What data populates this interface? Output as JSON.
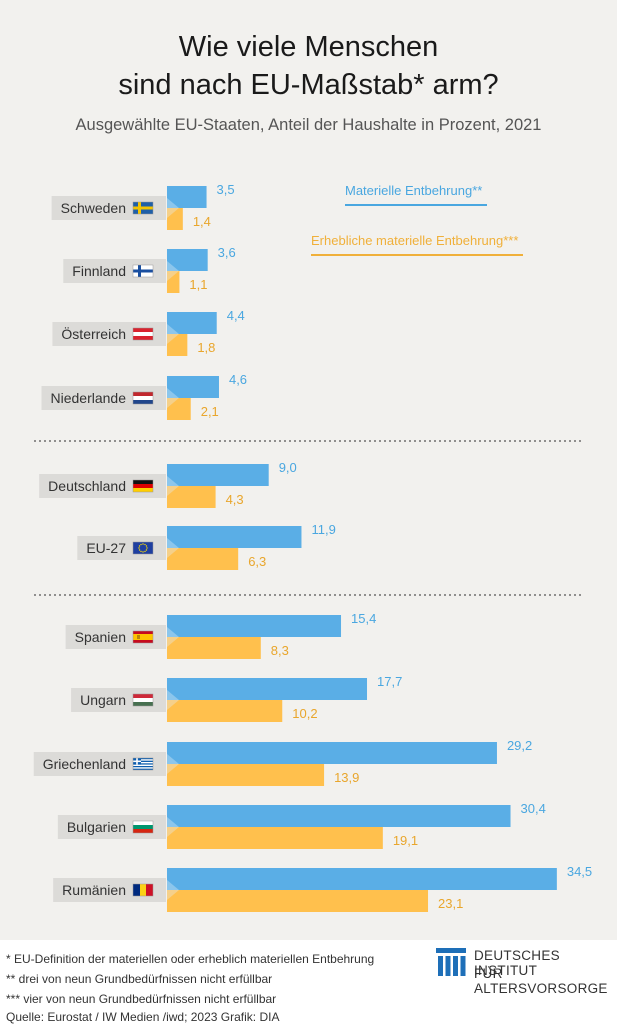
{
  "chart_data": {
    "type": "bar",
    "title": "Wie viele Menschen sind nach EU-Maßstab* arm?",
    "title_lines": [
      "Wie viele Menschen",
      "sind nach EU-Maßstab* arm?"
    ],
    "subtitle": "Ausgewählte EU-Staaten, Anteil der Haushalte in Prozent, 2021",
    "orientation": "horizontal",
    "legend_position": "top-right",
    "grid": false,
    "categories": [
      "Schweden",
      "Finnland",
      "Österreich",
      "Niederlande",
      "Deutschland",
      "EU-27",
      "Spanien",
      "Ungarn",
      "Griechenland",
      "Bulgarien",
      "Rumänien"
    ],
    "series": [
      {
        "name": "Materielle Entbehrung**",
        "color": "#5aaee6",
        "values": [
          3.5,
          3.6,
          4.4,
          4.6,
          9.0,
          11.9,
          15.4,
          17.7,
          29.2,
          30.4,
          34.5
        ],
        "labels": [
          "3,5",
          "3,6",
          "4,4",
          "4,6",
          "9,0",
          "11,9",
          "15,4",
          "17,7",
          "29,2",
          "30,4",
          "34,5"
        ]
      },
      {
        "name": "Erhebliche materielle Entbehrung***",
        "color": "#ffc04d",
        "values": [
          1.4,
          1.1,
          1.8,
          2.1,
          4.3,
          6.3,
          8.3,
          10.2,
          13.9,
          19.1,
          23.1
        ],
        "labels": [
          "1,4",
          "1,1",
          "1,8",
          "2,1",
          "4,3",
          "6,3",
          "8,3",
          "10,2",
          "13,9",
          "19,1",
          "23,1"
        ]
      }
    ],
    "flags": [
      "flag-sweden",
      "flag-finland",
      "flag-austria",
      "flag-netherlands",
      "flag-germany",
      "flag-eu",
      "flag-spain",
      "flag-hungary",
      "flag-greece",
      "flag-bulgaria",
      "flag-romania"
    ],
    "group_separators_after": [
      3,
      5
    ]
  },
  "footer": {
    "note1": "* EU-Definition der materiellen oder erheblich materiellen Entbehrung",
    "note2": "** drei von neun Grundbedürfnissen nicht erfüllbar",
    "note3": "*** vier von neun Grundbedürfnissen nicht erfüllbar",
    "source": "Quelle: Eurostat / IW Medien /iwd; 2023  Grafik: DIA",
    "logo_line1": "DEUTSCHES INSTITUT",
    "logo_line2": "FÜR ALTERSVORSORGE"
  },
  "colors": {
    "blue": "#5aaee6",
    "orange": "#ffc04d",
    "label_box": "#dcdbd8",
    "background": "#f2f1ee"
  }
}
